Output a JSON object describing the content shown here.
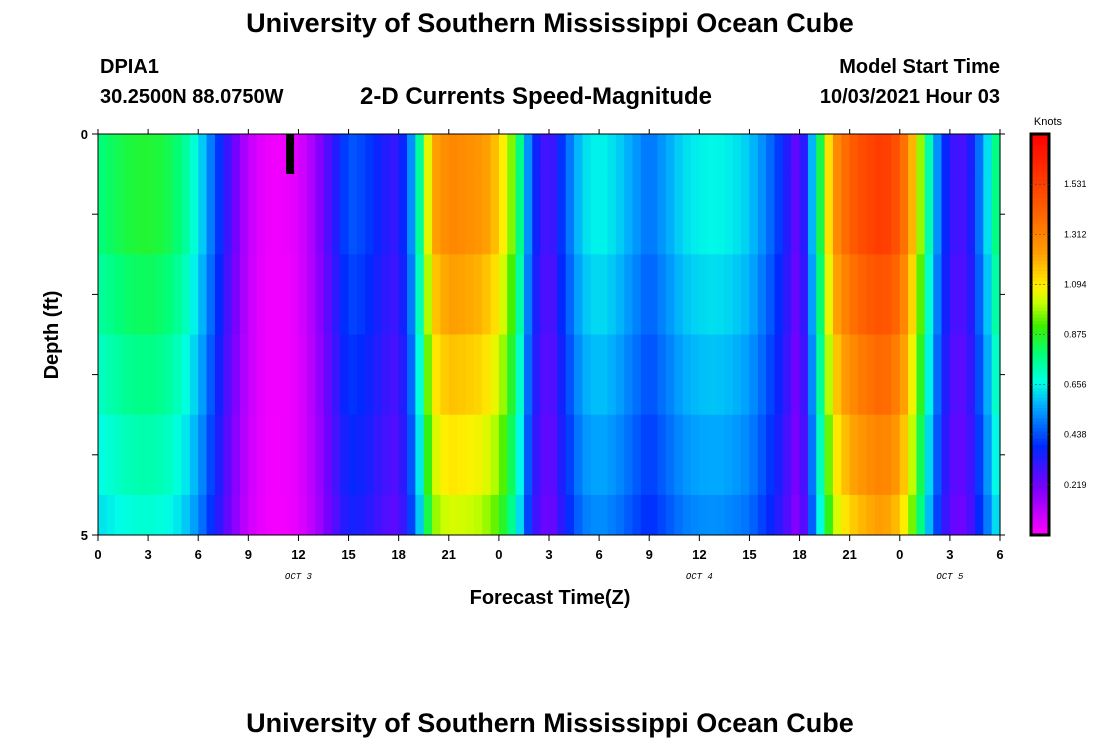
{
  "header": {
    "title": "University of Southern Mississippi Ocean Cube",
    "station": "DPIA1",
    "coordinates": "30.2500N  88.0750W",
    "subtitle": "2-D Currents Speed-Magnitude",
    "model_start_label": "Model Start Time",
    "model_start_value": "10/03/2021 Hour 03"
  },
  "footer": {
    "title": "University of Southern Mississippi Ocean Cube"
  },
  "chart_data": {
    "type": "heatmap",
    "title": "2-D Currents Speed-Magnitude",
    "xlabel": "Forecast Time(Z)",
    "ylabel": "Depth (ft)",
    "x_tick_labels": [
      "0",
      "3",
      "6",
      "9",
      "12",
      "15",
      "18",
      "21",
      "0",
      "3",
      "6",
      "9",
      "12",
      "15",
      "18",
      "21",
      "0",
      "3",
      "6"
    ],
    "x_range_hours": [
      0,
      54
    ],
    "date_labels": [
      {
        "label": "OCT 3",
        "hour": 12
      },
      {
        "label": "OCT 4",
        "hour": 36
      },
      {
        "label": "OCT 5",
        "hour": 51
      }
    ],
    "y_tick_labels": [
      "0",
      "5"
    ],
    "y_range": [
      0,
      5
    ],
    "colorbar": {
      "unit": "Knots",
      "min": 0,
      "max": 1.75,
      "tick_labels": [
        "1.531",
        "1.312",
        "1.094",
        "0.875",
        "0.656",
        "0.438",
        "0.219"
      ],
      "tick_values": [
        1.531,
        1.312,
        1.094,
        0.875,
        0.656,
        0.438,
        0.219
      ]
    },
    "depth_band_values": [
      0,
      0,
      -0.05,
      -0.1,
      -0.15,
      -0.2
    ],
    "time_series_surface": [
      {
        "hour": 0,
        "value": 0.78
      },
      {
        "hour": 1,
        "value": 0.82
      },
      {
        "hour": 2,
        "value": 0.85
      },
      {
        "hour": 3,
        "value": 0.86
      },
      {
        "hour": 4,
        "value": 0.84
      },
      {
        "hour": 5,
        "value": 0.78
      },
      {
        "hour": 6,
        "value": 0.65
      },
      {
        "hour": 7,
        "value": 0.45
      },
      {
        "hour": 8,
        "value": 0.25
      },
      {
        "hour": 9,
        "value": 0.1
      },
      {
        "hour": 10,
        "value": 0.03
      },
      {
        "hour": 11,
        "value": 0.02
      },
      {
        "hour": 12,
        "value": 0.05
      },
      {
        "hour": 13,
        "value": 0.15
      },
      {
        "hour": 14,
        "value": 0.3
      },
      {
        "hour": 15,
        "value": 0.45
      },
      {
        "hour": 16,
        "value": 0.42
      },
      {
        "hour": 17,
        "value": 0.35
      },
      {
        "hour": 18,
        "value": 0.3
      },
      {
        "hour": 19,
        "value": 0.6
      },
      {
        "hour": 20,
        "value": 1.2
      },
      {
        "hour": 21,
        "value": 1.3
      },
      {
        "hour": 22,
        "value": 1.28
      },
      {
        "hour": 23,
        "value": 1.25
      },
      {
        "hour": 24,
        "value": 1.15
      },
      {
        "hour": 25,
        "value": 0.9
      },
      {
        "hour": 26,
        "value": 0.4
      },
      {
        "hour": 27,
        "value": 0.25
      },
      {
        "hour": 28,
        "value": 0.45
      },
      {
        "hour": 29,
        "value": 0.62
      },
      {
        "hour": 30,
        "value": 0.66
      },
      {
        "hour": 31,
        "value": 0.62
      },
      {
        "hour": 32,
        "value": 0.55
      },
      {
        "hour": 33,
        "value": 0.48
      },
      {
        "hour": 34,
        "value": 0.55
      },
      {
        "hour": 35,
        "value": 0.62
      },
      {
        "hour": 36,
        "value": 0.65
      },
      {
        "hour": 37,
        "value": 0.66
      },
      {
        "hour": 38,
        "value": 0.64
      },
      {
        "hour": 39,
        "value": 0.6
      },
      {
        "hour": 40,
        "value": 0.5
      },
      {
        "hour": 41,
        "value": 0.38
      },
      {
        "hour": 42,
        "value": 0.2
      },
      {
        "hour": 43,
        "value": 0.7
      },
      {
        "hour": 44,
        "value": 1.25
      },
      {
        "hour": 45,
        "value": 1.42
      },
      {
        "hour": 46,
        "value": 1.5
      },
      {
        "hour": 47,
        "value": 1.55
      },
      {
        "hour": 48,
        "value": 1.45
      },
      {
        "hour": 49,
        "value": 1.1
      },
      {
        "hour": 50,
        "value": 0.6
      },
      {
        "hour": 51,
        "value": 0.3
      },
      {
        "hour": 52,
        "value": 0.28
      },
      {
        "hour": 53,
        "value": 0.55
      },
      {
        "hour": 54,
        "value": 0.85
      }
    ],
    "marker": {
      "hour": 11.5,
      "depth_from": 0,
      "depth_to": 0.5,
      "color": "#000000"
    }
  }
}
